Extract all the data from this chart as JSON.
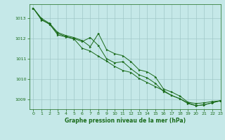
{
  "title": "Graphe pression niveau de la mer (hPa)",
  "background_color": "#c5e8e8",
  "grid_color": "#a0c8c8",
  "line_color": "#1a6b1a",
  "xlim": [
    -0.5,
    23
  ],
  "ylim": [
    1008.5,
    1013.7
  ],
  "yticks": [
    1009,
    1010,
    1011,
    1012,
    1013
  ],
  "xticks": [
    0,
    1,
    2,
    3,
    4,
    5,
    6,
    7,
    8,
    9,
    10,
    11,
    12,
    13,
    14,
    15,
    16,
    17,
    18,
    19,
    20,
    21,
    22,
    23
  ],
  "series": [
    {
      "x": [
        0,
        1,
        2,
        3,
        4,
        5,
        6,
        7,
        8,
        9,
        10,
        11,
        12,
        13,
        14,
        15,
        16,
        17,
        18,
        19,
        20,
        21,
        22,
        23
      ],
      "y": [
        1013.5,
        1013.0,
        1012.75,
        1012.3,
        1012.15,
        1012.05,
        1011.9,
        1011.6,
        1012.25,
        1011.45,
        1011.25,
        1011.15,
        1010.85,
        1010.45,
        1010.35,
        1010.1,
        1009.5,
        1009.35,
        1009.15,
        1008.85,
        1008.78,
        1008.82,
        1008.88,
        1008.92
      ]
    },
    {
      "x": [
        0,
        1,
        2,
        3,
        4,
        5,
        6,
        7,
        8,
        9,
        10,
        11,
        12,
        13,
        14,
        15,
        16,
        17,
        18,
        19,
        20,
        21,
        22,
        23
      ],
      "y": [
        1013.5,
        1012.95,
        1012.7,
        1012.25,
        1012.1,
        1012.0,
        1011.85,
        1012.05,
        1011.65,
        1011.0,
        1010.8,
        1010.85,
        1010.5,
        1010.2,
        1010.05,
        1009.78,
        1009.38,
        1009.18,
        1009.02,
        1008.82,
        1008.68,
        1008.72,
        1008.82,
        1008.92
      ]
    },
    {
      "x": [
        0,
        1,
        2,
        3,
        4,
        5,
        6,
        7,
        8,
        9,
        10,
        11,
        12,
        13,
        14,
        15,
        16,
        17,
        18,
        19,
        20,
        21,
        22,
        23
      ],
      "y": [
        1013.5,
        1012.92,
        1012.72,
        1012.18,
        1012.08,
        1011.98,
        1011.52,
        1011.38,
        1011.12,
        1010.88,
        1010.62,
        1010.42,
        1010.32,
        1010.02,
        1009.82,
        1009.62,
        1009.42,
        1009.18,
        1009.02,
        1008.78,
        1008.67,
        1008.72,
        1008.82,
        1008.92
      ]
    }
  ]
}
